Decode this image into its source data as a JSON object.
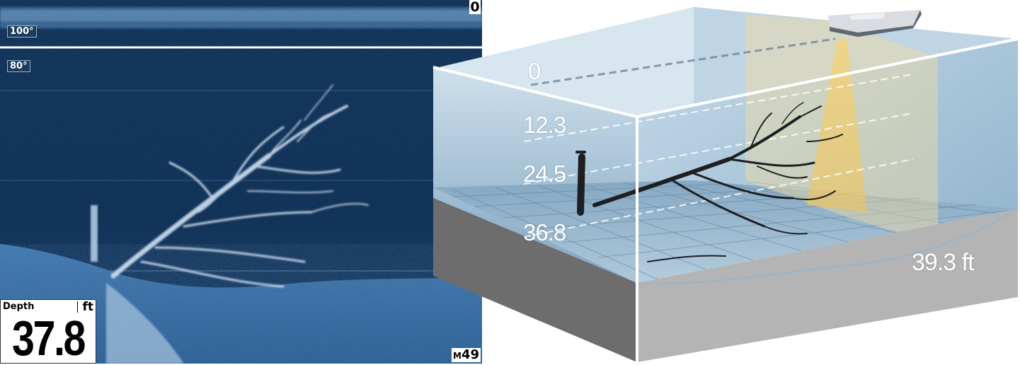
{
  "sonar": {
    "top_depth": "0",
    "temp_upper": "100°",
    "temp_lower": "80°",
    "range_prefix": "M",
    "range_value": "49",
    "depth_box": {
      "title": "Depth",
      "unit": "ft",
      "value": "37.8"
    }
  },
  "illustration": {
    "depth_marks": [
      "0",
      "12.3",
      "24.5",
      "36.8"
    ],
    "bottom_depth": "39.3 ft"
  }
}
